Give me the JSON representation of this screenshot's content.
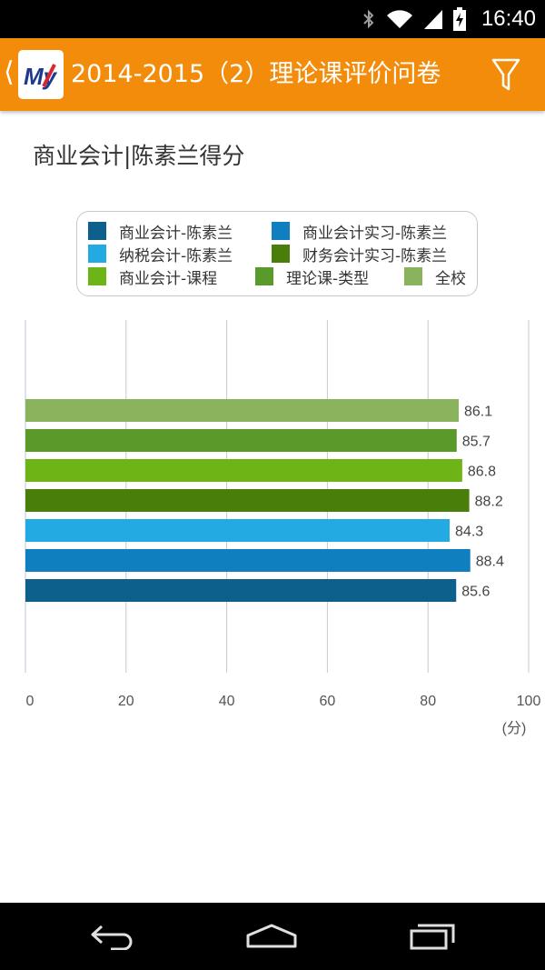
{
  "status_bar": {
    "time": "16:40",
    "icons": [
      "bluetooth-icon",
      "wifi-icon",
      "signal-icon",
      "battery-charging-icon"
    ]
  },
  "app_bar": {
    "title": "2014-2015（2）理论课评价问卷",
    "logo_text": "My",
    "icons": [
      "back-chevron-icon",
      "app-logo-icon",
      "filter-icon"
    ],
    "color": "#f28c0a"
  },
  "chart_data": {
    "type": "bar",
    "orientation": "horizontal",
    "title": "商业会计|陈素兰得分",
    "categories": [],
    "series": [
      {
        "name": "商业会计-陈素兰",
        "color": "#0d5f8c",
        "value": 85.6
      },
      {
        "name": "商业会计实习-陈素兰",
        "color": "#0f7fbf",
        "value": 88.4
      },
      {
        "name": "纳税会计-陈素兰",
        "color": "#23aae2",
        "value": 84.3
      },
      {
        "name": "财务会计实习-陈素兰",
        "color": "#4a7e0a",
        "value": 88.2
      },
      {
        "name": "商业会计-课程",
        "color": "#6db516",
        "value": 86.8
      },
      {
        "name": "理论课-类型",
        "color": "#5a9a2a",
        "value": 85.7
      },
      {
        "name": "全校",
        "color": "#8ab35e",
        "value": 86.1
      }
    ],
    "xlim": [
      0,
      100
    ],
    "xticks": [
      "0",
      "20",
      "40",
      "60",
      "80",
      "100"
    ],
    "xunit": "(分)",
    "grid": true,
    "legend_position": "top"
  },
  "nav_bar": {
    "icons": [
      "back-nav-icon",
      "home-nav-icon",
      "recents-nav-icon"
    ]
  }
}
